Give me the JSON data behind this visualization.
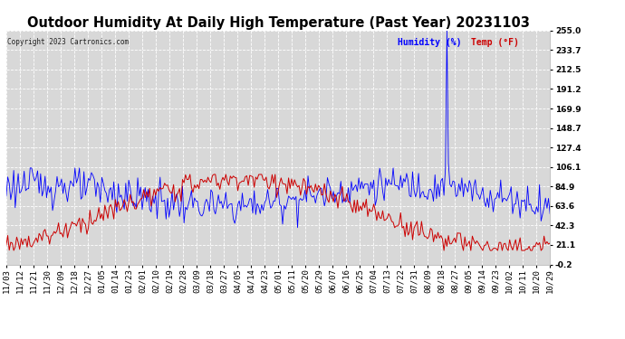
{
  "title": "Outdoor Humidity At Daily High Temperature (Past Year) 20231103",
  "copyright": "Copyright 2023 Cartronics.com",
  "legend_blue": "Humidity (%)",
  "legend_red": "Temp (°F)",
  "ylim": [
    -0.2,
    255.0
  ],
  "yticks": [
    255.0,
    233.7,
    212.5,
    191.2,
    169.9,
    148.7,
    127.4,
    106.1,
    84.9,
    63.6,
    42.3,
    21.1,
    -0.2
  ],
  "xtick_labels": [
    "11/03",
    "11/12",
    "11/21",
    "11/30",
    "12/09",
    "12/18",
    "12/27",
    "01/05",
    "01/14",
    "01/23",
    "02/01",
    "02/10",
    "02/19",
    "02/28",
    "03/09",
    "03/18",
    "03/27",
    "04/05",
    "04/14",
    "04/23",
    "05/01",
    "05/11",
    "05/20",
    "05/29",
    "06/07",
    "06/16",
    "06/25",
    "07/04",
    "07/13",
    "07/22",
    "07/31",
    "08/09",
    "08/18",
    "08/27",
    "09/05",
    "09/14",
    "09/23",
    "10/02",
    "10/11",
    "10/20",
    "10/29"
  ],
  "background_color": "#ffffff",
  "plot_bg_color": "#d8d8d8",
  "grid_color": "#ffffff",
  "blue_color": "#0000ff",
  "red_color": "#cc0000",
  "title_fontsize": 10.5,
  "axis_fontsize": 6.5,
  "label_fontsize": 7,
  "humidity_base": 75,
  "humidity_amp": 12,
  "humidity_noise": 10,
  "temp_base": 55,
  "temp_amp": 38,
  "temp_noise": 6,
  "spike_index": 295,
  "spike_value": 255.0
}
